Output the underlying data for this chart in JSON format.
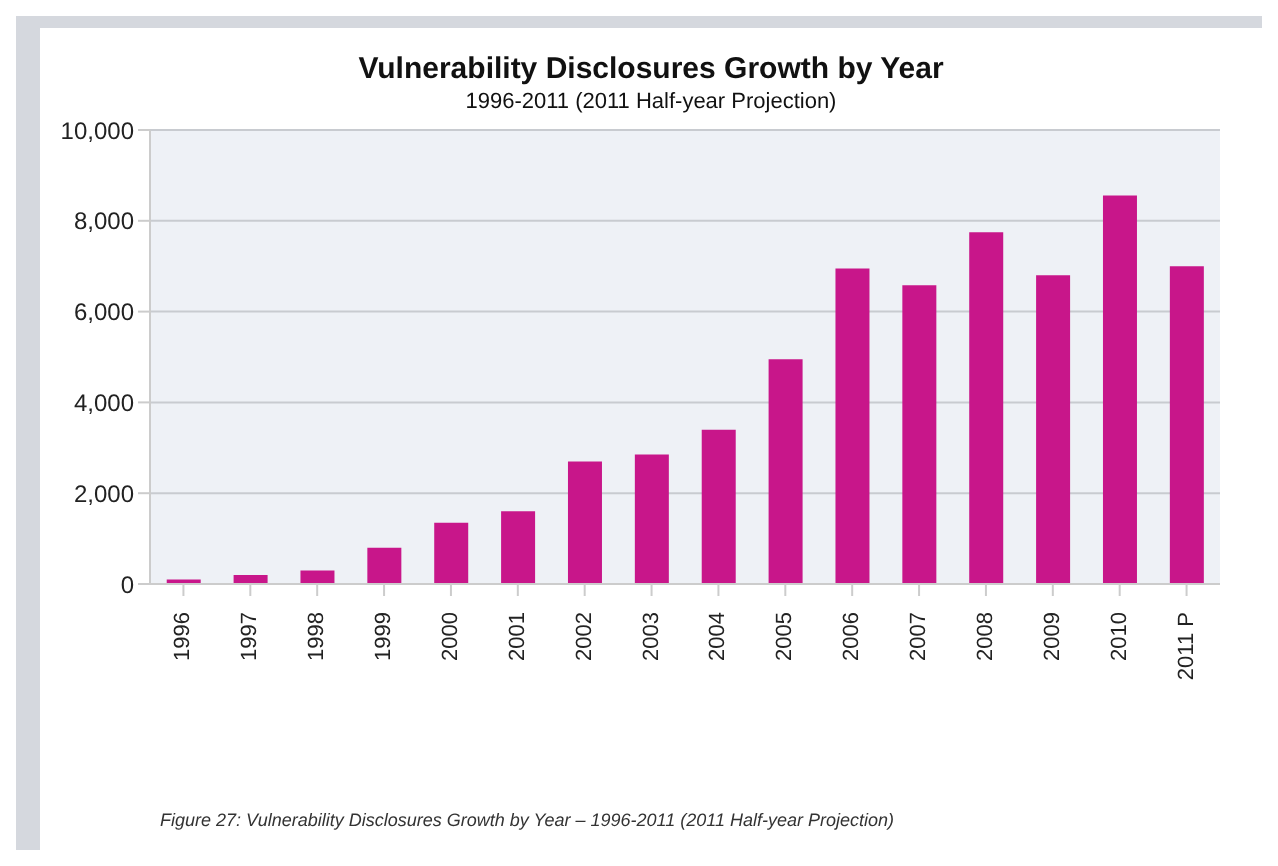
{
  "chart_data": {
    "type": "bar",
    "title": "Vulnerability Disclosures Growth by Year",
    "subtitle": "1996-2011 (2011 Half-year Projection)",
    "categories": [
      "1996",
      "1997",
      "1998",
      "1999",
      "2000",
      "2001",
      "2002",
      "2003",
      "2004",
      "2005",
      "2006",
      "2007",
      "2008",
      "2009",
      "2010",
      "2011 P"
    ],
    "values": [
      100,
      200,
      300,
      800,
      1350,
      1600,
      2700,
      2850,
      3400,
      4950,
      6950,
      6580,
      7750,
      6800,
      8560,
      7000
    ],
    "color": "#c8168a",
    "ylim": [
      0,
      10000
    ],
    "yticks": [
      0,
      {
        "value": 2000,
        "label": "2,000"
      },
      {
        "value": 4000,
        "label": "4,000"
      },
      {
        "value": 6000,
        "label": "6,000"
      },
      {
        "value": 8000,
        "label": "8,000"
      },
      {
        "value": 10000,
        "label": "10,000"
      }
    ],
    "grid": "y",
    "annotations": [
      "Figure 27: Vulnerability Disclosures Growth by Year – 1996-2011 (2011 Half-year Projection)"
    ]
  }
}
